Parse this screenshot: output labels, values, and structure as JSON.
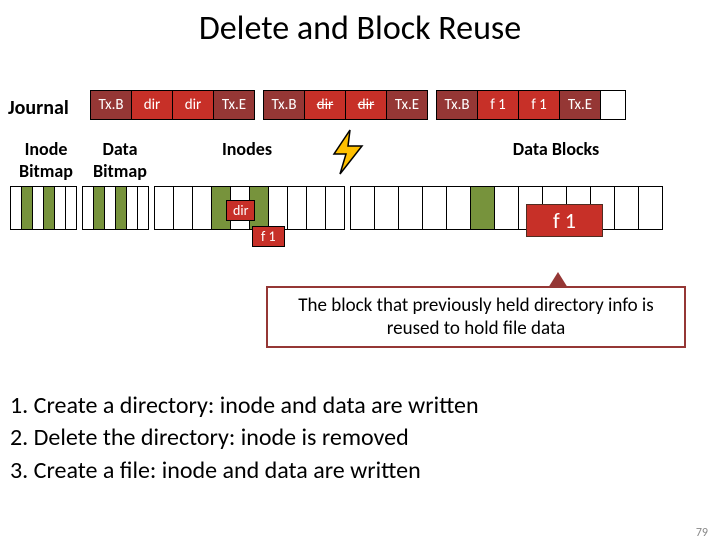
{
  "title": "Delete and Block Reuse",
  "journal_label": "Journal",
  "journal_cells": [
    {
      "text": "Tx.B",
      "cls": "txb"
    },
    {
      "text": "dir",
      "cls": "dirred"
    },
    {
      "text": "dir",
      "cls": "dirred"
    },
    {
      "text": "Tx.E",
      "cls": "txe"
    },
    {
      "text": "Tx.B",
      "cls": "txb"
    },
    {
      "text": "dir",
      "cls": "dirstrike"
    },
    {
      "text": "dir",
      "cls": "dirstrike"
    },
    {
      "text": "Tx.E",
      "cls": "txe"
    },
    {
      "text": "Tx.B",
      "cls": "txb"
    },
    {
      "text": "f 1",
      "cls": "f1cell"
    },
    {
      "text": "f 1",
      "cls": "f1cell"
    },
    {
      "text": "Tx.E",
      "cls": "txe"
    }
  ],
  "labels": {
    "inode_bitmap": "Inode\nBitmap",
    "data_bitmap": "Data\nBitmap",
    "inodes": "Inodes",
    "data_blocks": "Data Blocks"
  },
  "tags": {
    "dir": "dir",
    "f1": "f 1"
  },
  "callout": "The block that previously held directory info is reused to hold file data",
  "steps": [
    "1.  Create a directory: inode and data are written",
    "2.  Delete the directory: inode is removed",
    "3.  Create a file: inode and data are written"
  ],
  "pagenum": "79",
  "colors": {
    "brown": "#953735",
    "red": "#c73028",
    "green": "#77933c"
  }
}
